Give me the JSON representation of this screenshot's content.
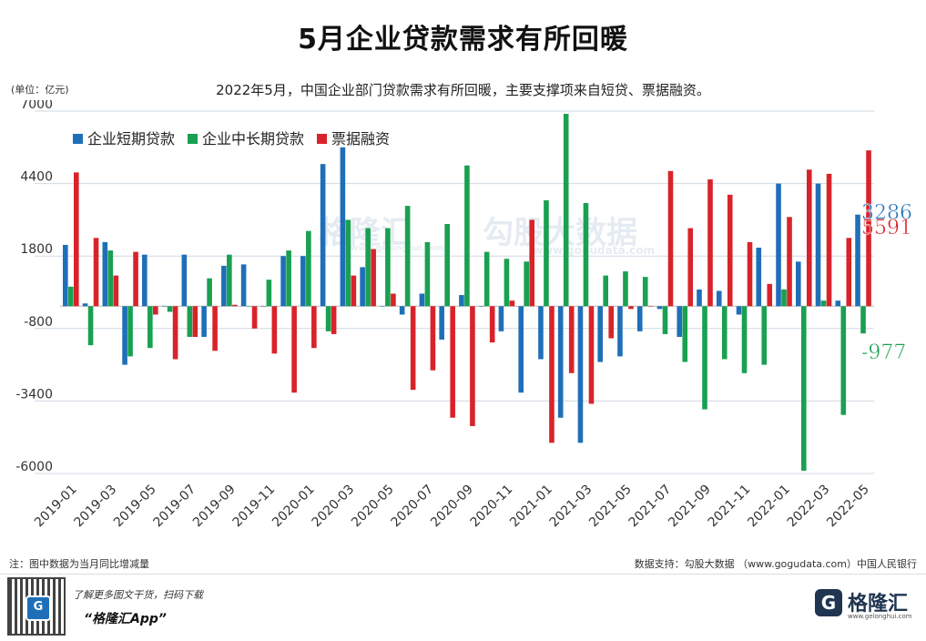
{
  "header": {
    "title": "5月企业贷款需求有所回暖",
    "unit": "(单位：亿元)",
    "subtitle": "2022年5月，中国企业部门贷款需求有所回暖，主要支撑项来自短贷、票据融资。"
  },
  "footer": {
    "note": "注：图中数据为当月同比增减量",
    "source": "数据支持：勾股大数据 （www.gogudata.com）中国人民银行",
    "promo_line1": "了解更多图文干货，扫码下载",
    "promo_line2": "“格隆汇App”",
    "brand_name": "格隆汇",
    "brand_icon": "G",
    "brand_url": "www.gelonghui.com",
    "qr_icon": "G"
  },
  "watermarks": {
    "left": "格隆汇",
    "left_url": "www.gelonghui.com",
    "right": "勾股大数据",
    "right_url": "www.gogudata.com"
  },
  "colors": {
    "short": "#1f6fb8",
    "long": "#19a051",
    "bill": "#d8232a"
  },
  "chart_data": {
    "type": "bar",
    "title": "5月企业贷款需求有所回暖",
    "ylabel": "亿元",
    "ylim": [
      -6000,
      7000
    ],
    "yticks": [
      7000,
      4400,
      1800,
      -800,
      -3400,
      -6000
    ],
    "ytick_labels": [
      "7000",
      "4400",
      "1800",
      "-800",
      "-3400",
      "-6000"
    ],
    "categories": [
      "2019-01",
      "2019-02",
      "2019-03",
      "2019-04",
      "2019-05",
      "2019-06",
      "2019-07",
      "2019-08",
      "2019-09",
      "2019-10",
      "2019-11",
      "2019-12",
      "2020-01",
      "2020-02",
      "2020-03",
      "2020-04",
      "2020-05",
      "2020-06",
      "2020-07",
      "2020-08",
      "2020-09",
      "2020-10",
      "2020-11",
      "2020-12",
      "2021-01",
      "2021-02",
      "2021-03",
      "2021-04",
      "2021-05",
      "2021-06",
      "2021-07",
      "2021-08",
      "2021-09",
      "2021-10",
      "2021-11",
      "2021-12",
      "2022-01",
      "2022-02",
      "2022-03",
      "2022-04",
      "2022-05"
    ],
    "xtick_labels": [
      "2019-01",
      "2019-03",
      "2019-05",
      "2019-07",
      "2019-09",
      "2019-11",
      "2020-01",
      "2020-03",
      "2020-05",
      "2020-07",
      "2020-09",
      "2020-11",
      "2021-01",
      "2021-03",
      "2021-05",
      "2021-07",
      "2021-09",
      "2021-11",
      "2022-01",
      "2022-03",
      "2022-05"
    ],
    "legend": {
      "position": "top-left"
    },
    "series": [
      {
        "name": "企业短期贷款",
        "values": [
          2200,
          100,
          2300,
          -2100,
          1850,
          0,
          1850,
          -1100,
          1450,
          1500,
          0,
          1800,
          1800,
          5100,
          5700,
          1400,
          0,
          -300,
          450,
          -1200,
          400,
          0,
          -900,
          -3100,
          -1900,
          -4000,
          -4900,
          -2000,
          -1800,
          -900,
          -100,
          -1100,
          600,
          550,
          -300,
          2100,
          4400,
          1600,
          4400,
          200,
          3286
        ]
      },
      {
        "name": "企业中长期贷款",
        "values": [
          700,
          -1400,
          2000,
          -1800,
          -1500,
          -200,
          -1100,
          1000,
          1850,
          0,
          950,
          2000,
          2700,
          -900,
          3100,
          2800,
          2800,
          3600,
          2300,
          2950,
          5050,
          1950,
          1700,
          1600,
          3800,
          6900,
          3700,
          1100,
          1250,
          1050,
          -1000,
          -2000,
          -3700,
          -1900,
          -2400,
          -2100,
          600,
          -5900,
          200,
          -3900,
          -977
        ]
      },
      {
        "name": "票据融资",
        "values": [
          4800,
          2450,
          1100,
          1950,
          -300,
          -1900,
          -1100,
          -1600,
          50,
          -800,
          -1700,
          -3100,
          -1500,
          -1000,
          1100,
          2050,
          450,
          -3000,
          -2300,
          -4000,
          -4300,
          -1300,
          200,
          3100,
          -4900,
          -2400,
          -3500,
          -1150,
          -100,
          0,
          4850,
          2800,
          4550,
          4000,
          2300,
          800,
          3200,
          4900,
          4750,
          2450,
          5591
        ]
      }
    ],
    "end_labels": [
      "3286",
      "-977",
      "5591"
    ]
  }
}
